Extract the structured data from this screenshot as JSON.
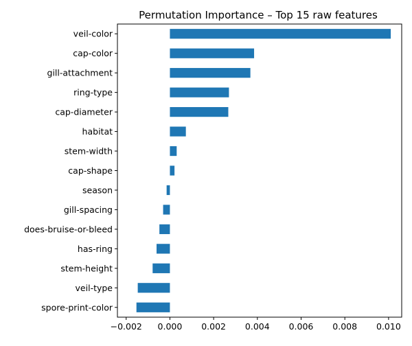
{
  "chart_data": {
    "type": "bar",
    "orientation": "horizontal",
    "title": "Permutation Importance – Top 15 raw features",
    "xlabel": "",
    "ylabel": "",
    "categories": [
      "veil-color",
      "cap-color",
      "gill-attachment",
      "ring-type",
      "cap-diameter",
      "habitat",
      "stem-width",
      "cap-shape",
      "season",
      "gill-spacing",
      "does-bruise-or-bleed",
      "has-ring",
      "stem-height",
      "veil-type",
      "spore-print-color"
    ],
    "values": [
      0.0101,
      0.00385,
      0.00368,
      0.0027,
      0.00267,
      0.00073,
      0.00031,
      0.00021,
      -0.00015,
      -0.00031,
      -0.00048,
      -0.00061,
      -0.00079,
      -0.00147,
      -0.00153
    ],
    "xlim": [
      -0.0024,
      0.0106
    ],
    "xticks": [
      -0.002,
      0.0,
      0.002,
      0.004,
      0.006,
      0.008,
      0.01
    ],
    "xtick_labels": [
      "−0.002",
      "0.000",
      "0.002",
      "0.004",
      "0.006",
      "0.008",
      "0.010"
    ],
    "grid": false,
    "legend": false,
    "bar_color": "#1f77b4"
  }
}
